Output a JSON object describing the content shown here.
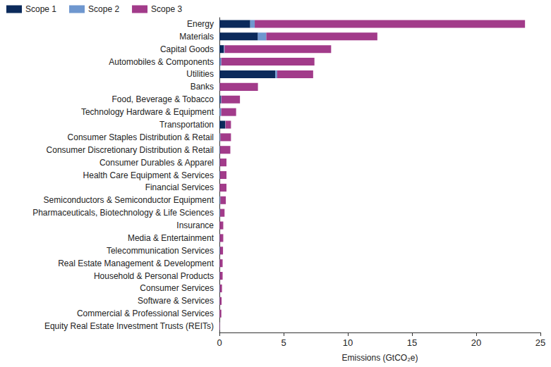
{
  "chart_data": {
    "type": "bar",
    "orientation": "horizontal",
    "stacked": true,
    "grid": false,
    "legend": "top-left",
    "x_label": "Emissions (GtCO₂e)",
    "xlim": [
      0,
      25
    ],
    "xticks": [
      0,
      5,
      10,
      15,
      20,
      25
    ],
    "categories": [
      "Energy",
      "Materials",
      "Capital Goods",
      "Automobiles & Components",
      "Utilities",
      "Banks",
      "Food, Beverage & Tobacco",
      "Technology Hardware & Equipment",
      "Transportation",
      "Consumer Staples Distribution & Retail",
      "Consumer Discretionary Distribution & Retail",
      "Consumer Durables & Apparel",
      "Health Care Equipment & Services",
      "Financial Services",
      "Semiconductors & Semiconductor Equipment",
      "Pharmaceuticals, Biotechnology & Life Sciences",
      "Insurance",
      "Media & Entertainment",
      "Telecommunication Services",
      "Real Estate Management & Development",
      "Household & Personal Products",
      "Consumer Services",
      "Software & Services",
      "Commercial & Professional Services",
      "Equity Real Estate Investment Trusts (REITs)"
    ],
    "series": [
      {
        "name": "Scope 1",
        "color": "#0b2a5b",
        "values": [
          2.4,
          3.0,
          0.35,
          0.05,
          4.35,
          0.01,
          0.1,
          0.02,
          0.45,
          0.03,
          0.02,
          0.02,
          0.02,
          0.01,
          0.03,
          0.03,
          0.01,
          0.01,
          0.02,
          0.01,
          0.02,
          0.02,
          0.01,
          0.01,
          0.01
        ]
      },
      {
        "name": "Scope 2",
        "color": "#6f97cf",
        "values": [
          0.35,
          0.65,
          0.05,
          0.1,
          0.15,
          0.02,
          0.05,
          0.12,
          0.02,
          0.05,
          0.03,
          0.02,
          0.03,
          0.01,
          0.05,
          0.03,
          0.01,
          0.02,
          0.03,
          0.02,
          0.02,
          0.02,
          0.02,
          0.01,
          0.01
        ]
      },
      {
        "name": "Scope 3",
        "color": "#a23b8a",
        "values": [
          21.05,
          8.65,
          8.3,
          7.25,
          2.8,
          2.97,
          1.45,
          1.16,
          0.43,
          0.82,
          0.8,
          0.51,
          0.5,
          0.53,
          0.42,
          0.34,
          0.28,
          0.27,
          0.23,
          0.22,
          0.21,
          0.16,
          0.14,
          0.13,
          0.03
        ]
      }
    ]
  }
}
